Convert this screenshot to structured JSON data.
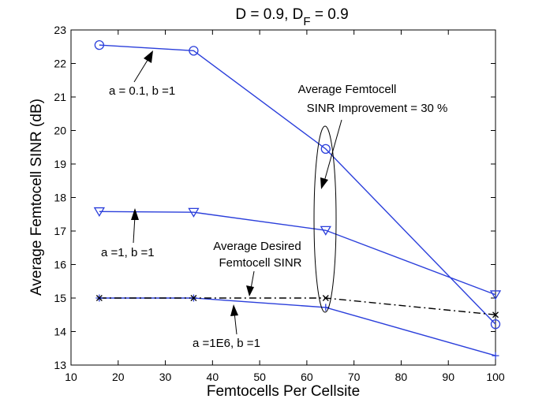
{
  "chart_data": {
    "type": "line",
    "title": "D = 0.9,  D",
    "title_subscript": "F",
    "title_suffix": " = 0.9",
    "xlabel": "Femtocells Per Cellsite",
    "ylabel": "Average Femtocell SINR (dB)",
    "xlim": [
      10,
      100
    ],
    "ylim": [
      13,
      23
    ],
    "xticks": [
      10,
      20,
      30,
      40,
      50,
      60,
      70,
      80,
      90,
      100
    ],
    "yticks": [
      13,
      14,
      15,
      16,
      17,
      18,
      19,
      20,
      21,
      22,
      23
    ],
    "grid": false,
    "x": [
      16,
      36,
      64,
      100
    ],
    "series": [
      {
        "values": [
          22.55,
          22.38,
          19.45,
          14.22
        ],
        "color": "#2b3fdb",
        "marker": "circle",
        "style": "solid"
      },
      {
        "values": [
          17.58,
          17.56,
          17.02,
          15.1
        ],
        "color": "#2b3fdb",
        "marker": "triangle-down",
        "style": "solid"
      },
      {
        "values": [
          15.0,
          15.0,
          14.72,
          13.28
        ],
        "color": "#2b3fdb",
        "marker": "plus",
        "style": "solid"
      },
      {
        "values": [
          15.0,
          15.0,
          15.0,
          14.5
        ],
        "color": "#000000",
        "marker": "x",
        "style": "dash-dot"
      }
    ],
    "annotations": [
      {
        "lines": [
          "a = 0.1, b =1"
        ]
      },
      {
        "lines": [
          "a =1, b =1"
        ]
      },
      {
        "lines": [
          "a =1E6, b =1"
        ]
      },
      {
        "lines": [
          "Average Desired",
          "Femtocell SINR"
        ]
      },
      {
        "lines": [
          "Average Femtocell",
          "SINR Improvement = 30 %"
        ]
      }
    ]
  }
}
